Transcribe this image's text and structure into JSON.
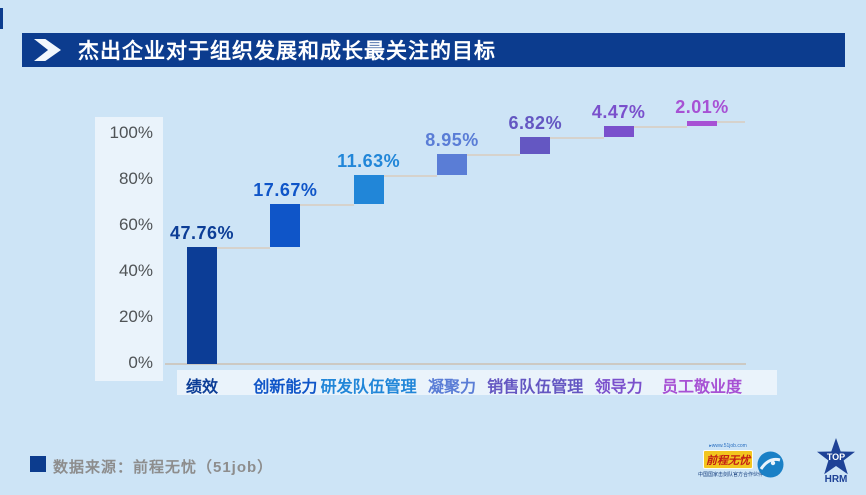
{
  "title": {
    "text": "杰出企业对于组织发展和成长最关注的目标"
  },
  "chart_data": {
    "type": "bar",
    "subtype": "waterfall",
    "title": "杰出企业对于组织发展和成长最关注的目标",
    "categories": [
      "绩效",
      "创新能力",
      "研发队伍管理",
      "凝聚力",
      "销售队伍管理",
      "领导力",
      "员工敬业度"
    ],
    "values": [
      47.76,
      17.67,
      11.63,
      8.95,
      6.82,
      4.47,
      2.01
    ],
    "value_labels": [
      "47.76%",
      "17.67%",
      "11.63%",
      "8.95%",
      "6.82%",
      "4.47%",
      "2.01%"
    ],
    "cumulative": [
      47.76,
      65.43,
      77.06,
      86.01,
      92.83,
      97.3,
      99.31
    ],
    "bar_colors": [
      "#0c3d96",
      "#0f55c8",
      "#2186d8",
      "#5a7dd6",
      "#6457c2",
      "#7a50cc",
      "#a751d4"
    ],
    "y_ticks": [
      "0%",
      "20%",
      "40%",
      "60%",
      "80%",
      "100%"
    ],
    "ylim": [
      0,
      100
    ],
    "xlabel": "",
    "ylabel": "",
    "grid": false,
    "legend": "none"
  },
  "source": {
    "label": "数据来源：前程无忧（51job）"
  },
  "logos": {
    "job51": {
      "url_text": "www.51job.com",
      "brand": "前程无忧",
      "tagline": "中国国家击剑队官方合作伙伴"
    },
    "tophrm": {
      "line1": "TOP",
      "line2": "HRM"
    }
  },
  "colors": {
    "background": "#cde4f6",
    "title_bar": "#0c3c8e",
    "axis_panel": "#eaf3fb",
    "tick_text": "#4f5356",
    "connector": "#d6d2cc",
    "source_text": "#8d8d8d",
    "logo_yellow": "#f3c51e",
    "logo_red": "#c21e14",
    "logo_blue": "#1a80c6",
    "star_blue": "#1e4296"
  }
}
